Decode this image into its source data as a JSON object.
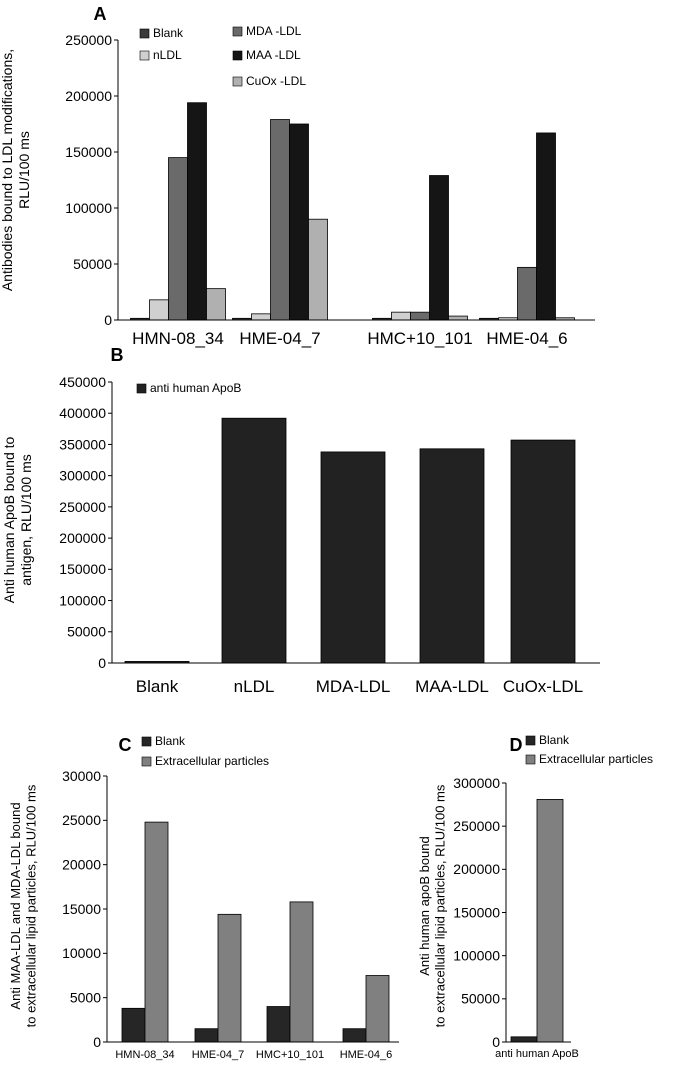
{
  "chart_data": [
    {
      "panel": "A",
      "type": "bar",
      "ylabel_lines": [
        "Antibodies bound to LDL modifications,",
        "RLU/100 ms"
      ],
      "ylim": [
        0,
        250000
      ],
      "yticks": [
        "0",
        "50000",
        "100000",
        "150000",
        "200000",
        "250000"
      ],
      "categories": [
        "HMN-08_34",
        "HME-04_7",
        "HMC+10_101",
        "HME-04_6"
      ],
      "legend": [
        "Blank",
        "nLDL",
        "MDA -LDL",
        "MAA -LDL",
        "CuOx -LDL"
      ],
      "series": [
        {
          "name": "Blank",
          "color": "#3a3a3a",
          "values": [
            1500,
            1500,
            1500,
            1500
          ]
        },
        {
          "name": "nLDL",
          "color": "#d0d0d0",
          "values": [
            18000,
            5500,
            7000,
            2000
          ]
        },
        {
          "name": "MDA-LDL",
          "color": "#6a6a6a",
          "values": [
            145000,
            179000,
            7000,
            47000
          ]
        },
        {
          "name": "MAA-LDL",
          "color": "#151515",
          "values": [
            194000,
            175000,
            129000,
            167000
          ]
        },
        {
          "name": "CuOx-LDL",
          "color": "#b0b0b0",
          "values": [
            28000,
            90000,
            3500,
            2000
          ]
        }
      ]
    },
    {
      "panel": "B",
      "type": "bar",
      "ylabel_lines": [
        "Anti human ApoB bound to",
        "antigen, RLU/100 ms"
      ],
      "ylim": [
        0,
        450000
      ],
      "yticks": [
        "0",
        "50000",
        "100000",
        "150000",
        "200000",
        "250000",
        "300000",
        "350000",
        "400000",
        "450000"
      ],
      "categories": [
        "Blank",
        "nLDL",
        "MDA-LDL",
        "MAA-LDL",
        "CuOx-LDL"
      ],
      "legend": [
        "anti human ApoB"
      ],
      "series": [
        {
          "name": "anti human ApoB",
          "color": "#222222",
          "values": [
            2500,
            392000,
            338000,
            343000,
            357000
          ]
        }
      ]
    },
    {
      "panel": "C",
      "type": "bar",
      "ylabel_lines": [
        "Anti MAA-LDL and MDA-LDL bound",
        "to extracellular lipid particles, RLU/100 ms"
      ],
      "ylim": [
        0,
        30000
      ],
      "yticks": [
        "0",
        "5000",
        "10000",
        "15000",
        "20000",
        "25000",
        "30000"
      ],
      "categories": [
        "HMN-08_34",
        "HME-04_7",
        "HMC+10_101",
        "HME-04_6"
      ],
      "legend": [
        "Blank",
        "Extracellular particles"
      ],
      "series": [
        {
          "name": "Blank",
          "color": "#262626",
          "values": [
            3800,
            1500,
            4000,
            1500
          ]
        },
        {
          "name": "Extracellular particles",
          "color": "#808080",
          "values": [
            24800,
            14400,
            15800,
            7500
          ]
        }
      ]
    },
    {
      "panel": "D",
      "type": "bar",
      "ylabel_lines": [
        "Anti human apoB bound",
        "to extracellular lipid particles, RLU/100 ms"
      ],
      "ylim": [
        0,
        300000
      ],
      "yticks": [
        "0",
        "50000",
        "100000",
        "150000",
        "200000",
        "250000",
        "300000"
      ],
      "categories": [
        "anti human ApoB"
      ],
      "legend": [
        "Blank",
        "Extracellular particles"
      ],
      "series": [
        {
          "name": "Blank",
          "color": "#262626",
          "values": [
            6000
          ]
        },
        {
          "name": "Extracellular particles",
          "color": "#808080",
          "values": [
            281000
          ]
        }
      ]
    }
  ]
}
